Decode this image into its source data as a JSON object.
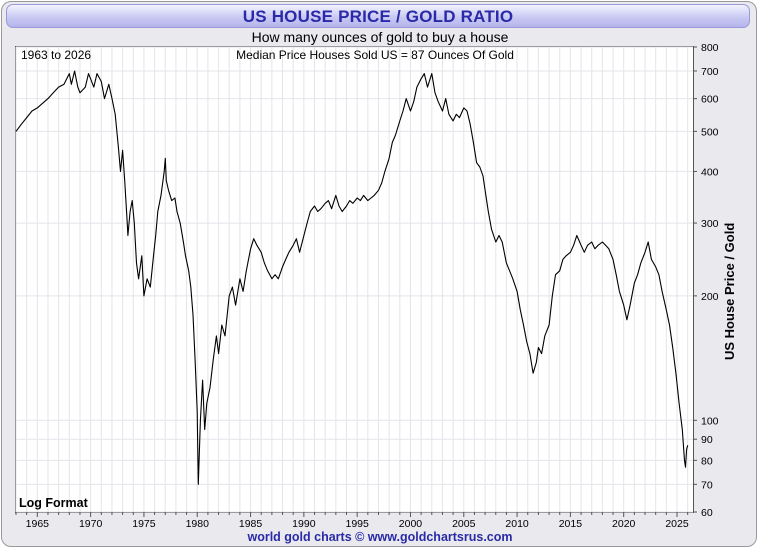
{
  "title": "US HOUSE PRICE / GOLD RATIO",
  "subtitle": "How many ounces of gold to buy a house",
  "footer": "world gold charts © www.goldchartsrus.com",
  "colors": {
    "title_text": "#2a2aa8",
    "title_bg": "#c9c9f3",
    "line": "#000000",
    "grid": "#e4e4ea",
    "footer": "#2a2aa8"
  },
  "chart_data": {
    "type": "line",
    "title": "US HOUSE PRICE / GOLD RATIO",
    "subtitle": "How many ounces of gold to buy a house",
    "annotations": {
      "top_left": "1963 to 2026",
      "top_center": "Median Price Houses Sold US = 87 Ounces Of Gold",
      "bottom_left": "Log Format"
    },
    "ylabel": "US House Price / Gold",
    "xlabel": "",
    "yscale": "log",
    "ylim": [
      60,
      800
    ],
    "xlim": [
      1963.0,
      2026.5
    ],
    "grid": true,
    "x_ticks": [
      1965,
      1970,
      1975,
      1980,
      1985,
      1990,
      1995,
      2000,
      2005,
      2010,
      2015,
      2020,
      2025
    ],
    "y_ticks": [
      60,
      70,
      80,
      90,
      100,
      200,
      300,
      400,
      500,
      600,
      700,
      800
    ],
    "series": [
      {
        "values": [
          [
            1963.0,
            500
          ],
          [
            1963.5,
            520
          ],
          [
            1964.0,
            540
          ],
          [
            1964.5,
            560
          ],
          [
            1965.0,
            570
          ],
          [
            1965.5,
            585
          ],
          [
            1966.0,
            600
          ],
          [
            1966.5,
            620
          ],
          [
            1967.0,
            640
          ],
          [
            1967.5,
            650
          ],
          [
            1968.0,
            690
          ],
          [
            1968.2,
            650
          ],
          [
            1968.5,
            700
          ],
          [
            1968.8,
            640
          ],
          [
            1969.0,
            620
          ],
          [
            1969.5,
            640
          ],
          [
            1969.8,
            690
          ],
          [
            1970.0,
            670
          ],
          [
            1970.3,
            640
          ],
          [
            1970.6,
            690
          ],
          [
            1971.0,
            660
          ],
          [
            1971.3,
            600
          ],
          [
            1971.7,
            650
          ],
          [
            1972.0,
            600
          ],
          [
            1972.3,
            550
          ],
          [
            1972.6,
            460
          ],
          [
            1972.8,
            400
          ],
          [
            1973.0,
            450
          ],
          [
            1973.2,
            380
          ],
          [
            1973.4,
            310
          ],
          [
            1973.5,
            280
          ],
          [
            1973.7,
            320
          ],
          [
            1973.9,
            340
          ],
          [
            1974.1,
            300
          ],
          [
            1974.3,
            240
          ],
          [
            1974.5,
            220
          ],
          [
            1974.8,
            250
          ],
          [
            1975.0,
            200
          ],
          [
            1975.3,
            220
          ],
          [
            1975.6,
            210
          ],
          [
            1975.9,
            250
          ],
          [
            1976.1,
            280
          ],
          [
            1976.3,
            320
          ],
          [
            1976.6,
            350
          ],
          [
            1976.9,
            400
          ],
          [
            1977.0,
            430
          ],
          [
            1977.1,
            380
          ],
          [
            1977.3,
            360
          ],
          [
            1977.6,
            340
          ],
          [
            1977.9,
            345
          ],
          [
            1978.1,
            320
          ],
          [
            1978.4,
            300
          ],
          [
            1978.7,
            270
          ],
          [
            1978.9,
            250
          ],
          [
            1979.2,
            230
          ],
          [
            1979.4,
            210
          ],
          [
            1979.6,
            180
          ],
          [
            1979.8,
            140
          ],
          [
            1980.0,
            105
          ],
          [
            1980.1,
            70
          ],
          [
            1980.3,
            100
          ],
          [
            1980.5,
            125
          ],
          [
            1980.7,
            95
          ],
          [
            1980.9,
            110
          ],
          [
            1981.2,
            120
          ],
          [
            1981.5,
            140
          ],
          [
            1981.8,
            160
          ],
          [
            1982.0,
            145
          ],
          [
            1982.3,
            170
          ],
          [
            1982.6,
            160
          ],
          [
            1983.0,
            200
          ],
          [
            1983.3,
            210
          ],
          [
            1983.6,
            190
          ],
          [
            1984.0,
            220
          ],
          [
            1984.3,
            205
          ],
          [
            1984.6,
            230
          ],
          [
            1985.0,
            260
          ],
          [
            1985.3,
            275
          ],
          [
            1985.6,
            265
          ],
          [
            1986.0,
            255
          ],
          [
            1986.3,
            240
          ],
          [
            1986.6,
            230
          ],
          [
            1987.0,
            220
          ],
          [
            1987.3,
            225
          ],
          [
            1987.6,
            220
          ],
          [
            1988.0,
            235
          ],
          [
            1988.3,
            245
          ],
          [
            1988.6,
            255
          ],
          [
            1989.0,
            265
          ],
          [
            1989.3,
            275
          ],
          [
            1989.6,
            255
          ],
          [
            1990.0,
            280
          ],
          [
            1990.3,
            300
          ],
          [
            1990.6,
            320
          ],
          [
            1991.0,
            330
          ],
          [
            1991.3,
            320
          ],
          [
            1991.6,
            325
          ],
          [
            1992.0,
            335
          ],
          [
            1992.3,
            340
          ],
          [
            1992.6,
            325
          ],
          [
            1993.0,
            350
          ],
          [
            1993.3,
            330
          ],
          [
            1993.6,
            320
          ],
          [
            1994.0,
            330
          ],
          [
            1994.3,
            340
          ],
          [
            1994.6,
            335
          ],
          [
            1995.0,
            345
          ],
          [
            1995.3,
            340
          ],
          [
            1995.6,
            350
          ],
          [
            1996.0,
            340
          ],
          [
            1996.3,
            345
          ],
          [
            1996.6,
            350
          ],
          [
            1997.0,
            360
          ],
          [
            1997.3,
            375
          ],
          [
            1997.6,
            400
          ],
          [
            1998.0,
            430
          ],
          [
            1998.3,
            470
          ],
          [
            1998.6,
            490
          ],
          [
            1999.0,
            530
          ],
          [
            1999.3,
            560
          ],
          [
            1999.6,
            600
          ],
          [
            2000.0,
            560
          ],
          [
            2000.3,
            590
          ],
          [
            2000.6,
            640
          ],
          [
            2001.0,
            670
          ],
          [
            2001.3,
            690
          ],
          [
            2001.6,
            640
          ],
          [
            2002.0,
            690
          ],
          [
            2002.3,
            620
          ],
          [
            2002.6,
            590
          ],
          [
            2003.0,
            560
          ],
          [
            2003.3,
            600
          ],
          [
            2003.6,
            550
          ],
          [
            2004.0,
            530
          ],
          [
            2004.3,
            550
          ],
          [
            2004.6,
            540
          ],
          [
            2005.0,
            570
          ],
          [
            2005.3,
            560
          ],
          [
            2005.6,
            520
          ],
          [
            2005.9,
            470
          ],
          [
            2006.2,
            420
          ],
          [
            2006.5,
            410
          ],
          [
            2006.8,
            390
          ],
          [
            2007.0,
            360
          ],
          [
            2007.3,
            320
          ],
          [
            2007.6,
            290
          ],
          [
            2008.0,
            270
          ],
          [
            2008.3,
            280
          ],
          [
            2008.6,
            270
          ],
          [
            2009.0,
            240
          ],
          [
            2009.3,
            230
          ],
          [
            2009.6,
            220
          ],
          [
            2010.0,
            205
          ],
          [
            2010.3,
            185
          ],
          [
            2010.6,
            170
          ],
          [
            2010.9,
            155
          ],
          [
            2011.2,
            145
          ],
          [
            2011.5,
            130
          ],
          [
            2011.8,
            138
          ],
          [
            2012.0,
            150
          ],
          [
            2012.3,
            145
          ],
          [
            2012.6,
            160
          ],
          [
            2013.0,
            170
          ],
          [
            2013.3,
            200
          ],
          [
            2013.6,
            225
          ],
          [
            2014.0,
            230
          ],
          [
            2014.3,
            245
          ],
          [
            2014.6,
            250
          ],
          [
            2015.0,
            255
          ],
          [
            2015.3,
            265
          ],
          [
            2015.6,
            280
          ],
          [
            2016.0,
            265
          ],
          [
            2016.3,
            255
          ],
          [
            2016.6,
            265
          ],
          [
            2017.0,
            270
          ],
          [
            2017.3,
            260
          ],
          [
            2017.6,
            265
          ],
          [
            2018.0,
            270
          ],
          [
            2018.3,
            265
          ],
          [
            2018.6,
            260
          ],
          [
            2019.0,
            245
          ],
          [
            2019.3,
            225
          ],
          [
            2019.6,
            205
          ],
          [
            2020.0,
            190
          ],
          [
            2020.3,
            175
          ],
          [
            2020.6,
            190
          ],
          [
            2021.0,
            215
          ],
          [
            2021.3,
            225
          ],
          [
            2021.6,
            240
          ],
          [
            2022.0,
            255
          ],
          [
            2022.3,
            270
          ],
          [
            2022.6,
            245
          ],
          [
            2023.0,
            235
          ],
          [
            2023.3,
            225
          ],
          [
            2023.6,
            205
          ],
          [
            2024.0,
            185
          ],
          [
            2024.3,
            170
          ],
          [
            2024.6,
            150
          ],
          [
            2024.9,
            130
          ],
          [
            2025.2,
            110
          ],
          [
            2025.5,
            95
          ],
          [
            2025.7,
            80
          ],
          [
            2025.8,
            77
          ],
          [
            2025.9,
            85
          ],
          [
            2026.0,
            87
          ]
        ]
      }
    ]
  }
}
